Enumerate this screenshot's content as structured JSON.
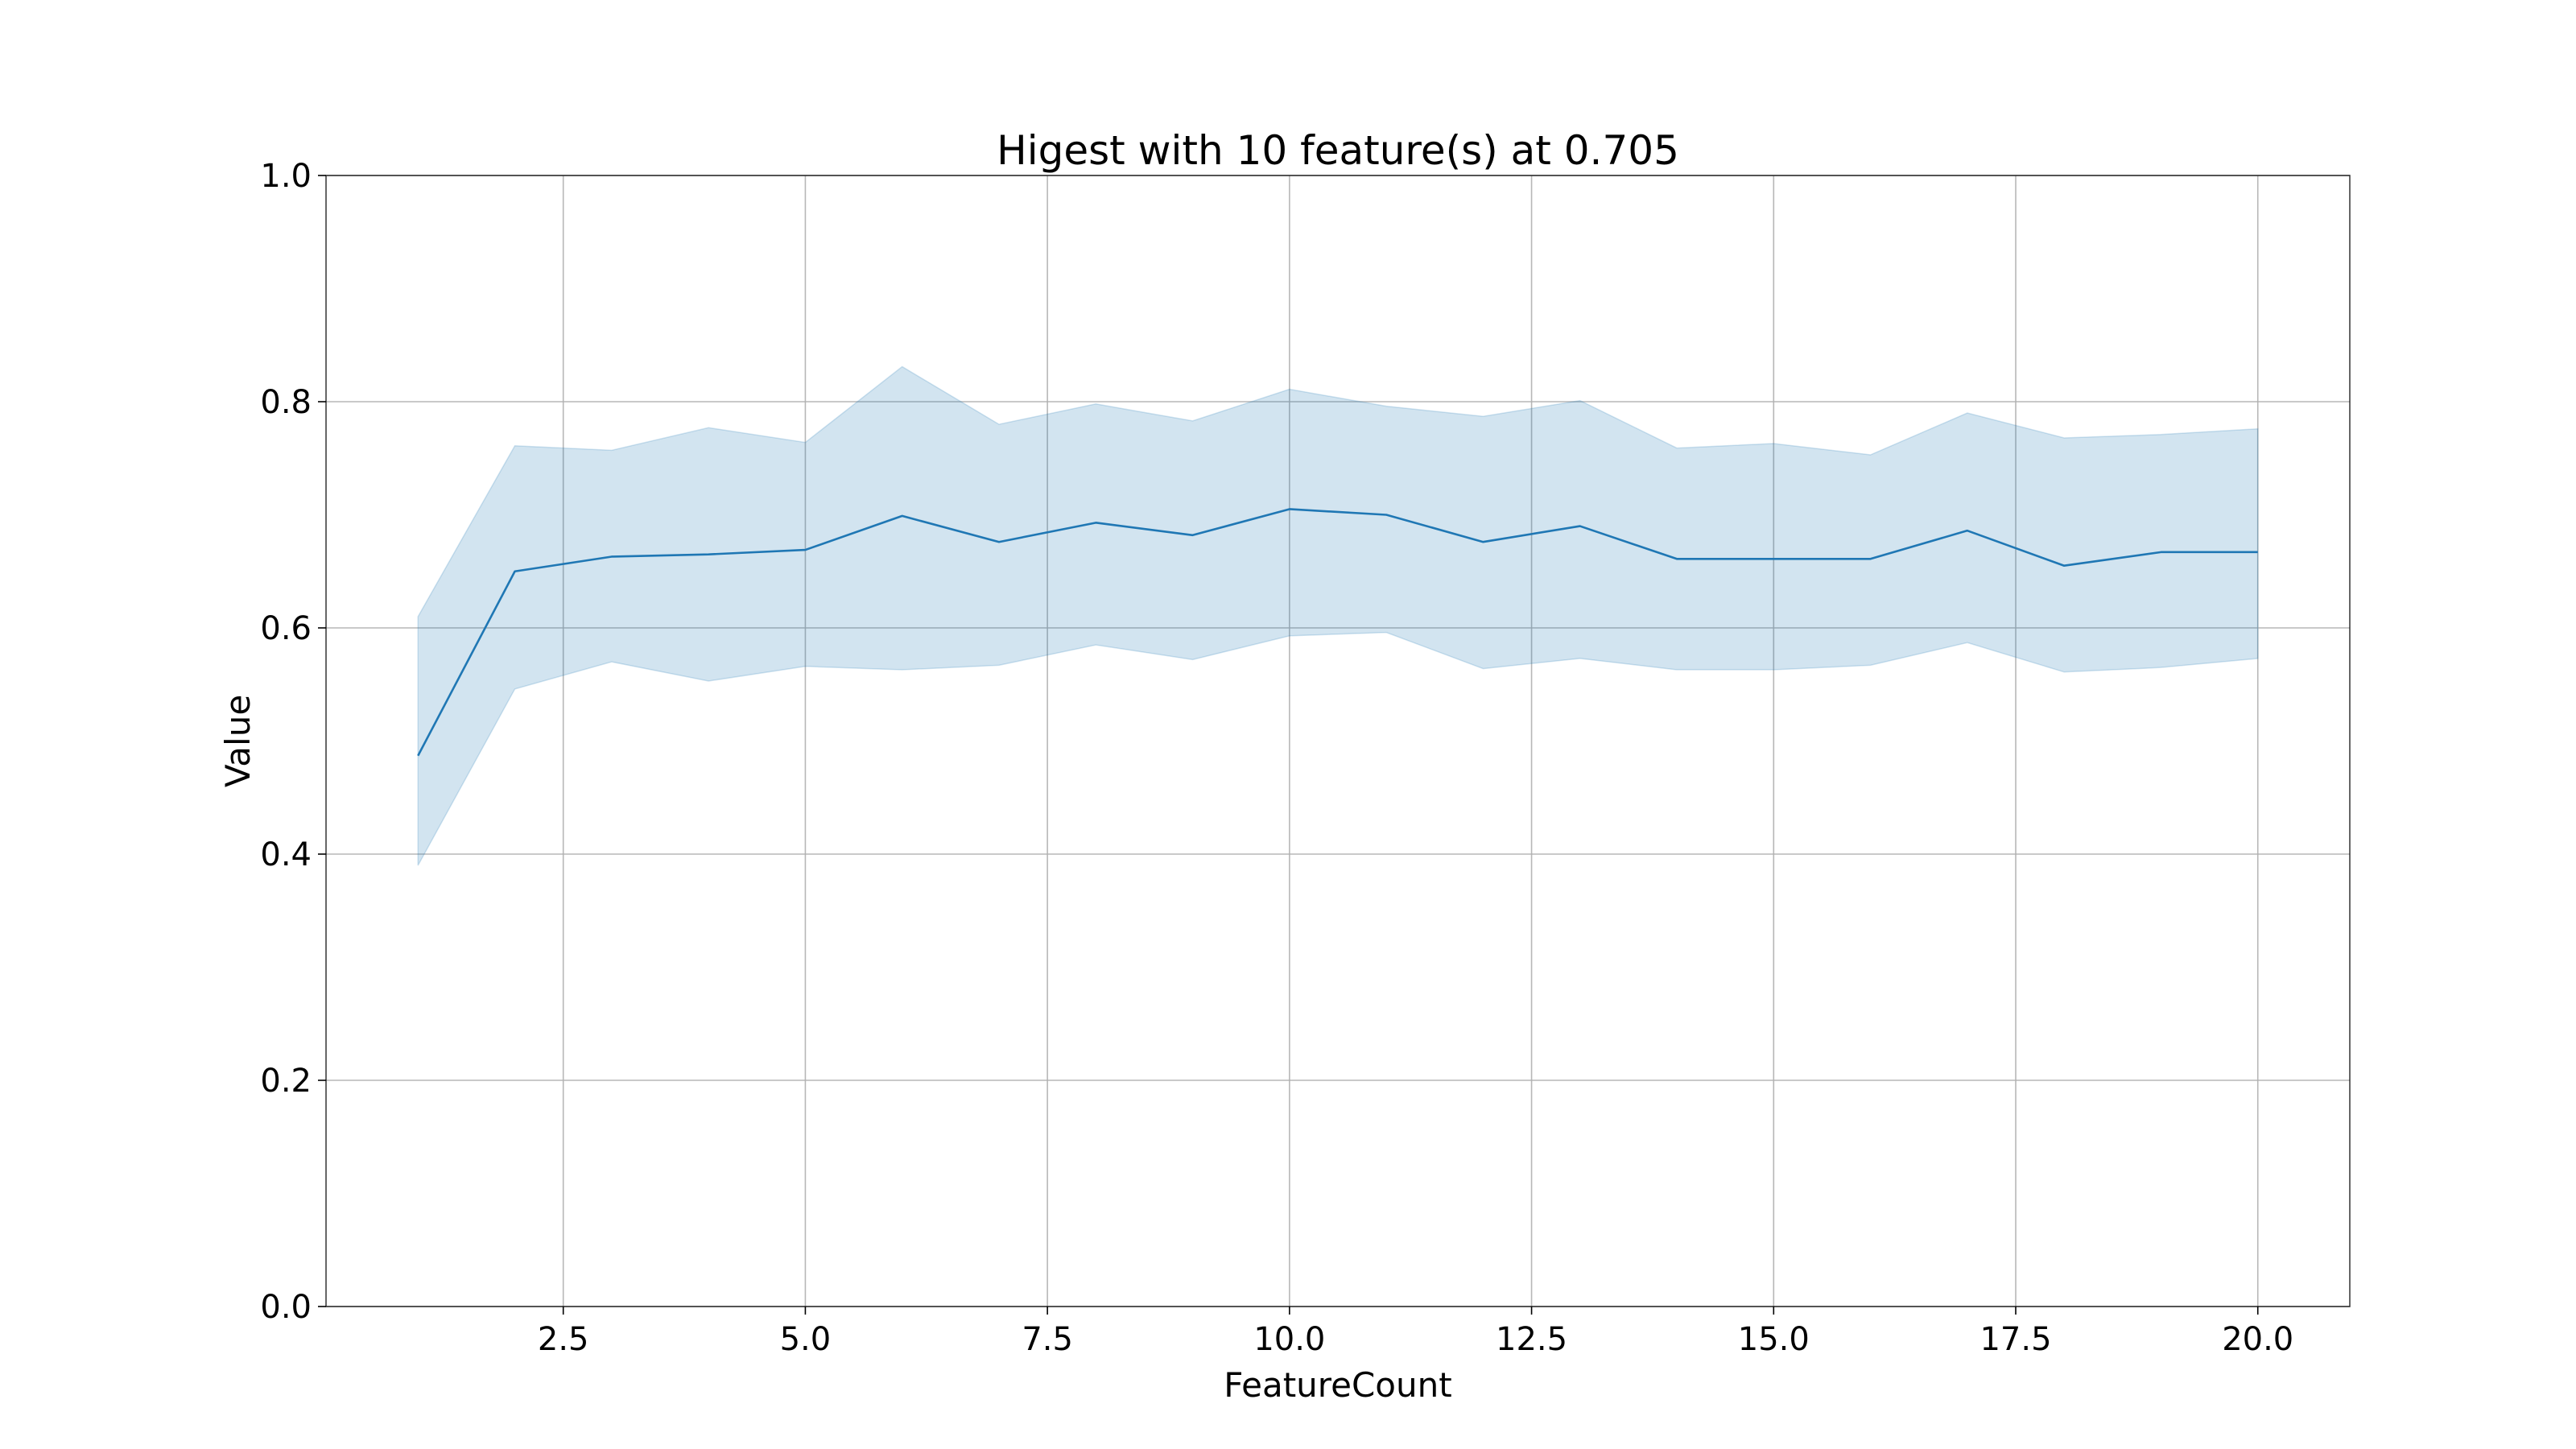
{
  "chart_data": {
    "type": "line",
    "title": "Higest with 10 feature(s) at 0.705",
    "xlabel": "FeatureCount",
    "ylabel": "Value",
    "xlim": [
      0.05,
      20.95
    ],
    "ylim": [
      0.0,
      1.0
    ],
    "grid": true,
    "x_ticks": [
      2.5,
      5.0,
      7.5,
      10.0,
      12.5,
      15.0,
      17.5,
      20.0
    ],
    "x_tick_labels": [
      "2.5",
      "5.0",
      "7.5",
      "10.0",
      "12.5",
      "15.0",
      "17.5",
      "20.0"
    ],
    "y_ticks": [
      0.0,
      0.2,
      0.4,
      0.6,
      0.8,
      1.0
    ],
    "y_tick_labels": [
      "0.0",
      "0.2",
      "0.4",
      "0.6",
      "0.8",
      "1.0"
    ],
    "series": [
      {
        "name": "Value",
        "color": "#1f77b4",
        "band_color": "#1f77b4",
        "x": [
          1,
          2,
          3,
          4,
          5,
          6,
          7,
          8,
          9,
          10,
          11,
          12,
          13,
          14,
          15,
          16,
          17,
          18,
          19,
          20
        ],
        "values": [
          0.487,
          0.65,
          0.663,
          0.665,
          0.669,
          0.699,
          0.676,
          0.693,
          0.682,
          0.705,
          0.7,
          0.676,
          0.69,
          0.661,
          0.661,
          0.661,
          0.686,
          0.655,
          0.667,
          0.667
        ],
        "upper": [
          0.61,
          0.761,
          0.757,
          0.777,
          0.764,
          0.831,
          0.78,
          0.798,
          0.783,
          0.811,
          0.796,
          0.787,
          0.801,
          0.759,
          0.763,
          0.753,
          0.79,
          0.768,
          0.771,
          0.776
        ],
        "lower": [
          0.39,
          0.546,
          0.57,
          0.553,
          0.566,
          0.563,
          0.567,
          0.585,
          0.572,
          0.593,
          0.596,
          0.564,
          0.573,
          0.563,
          0.563,
          0.567,
          0.587,
          0.561,
          0.565,
          0.573
        ]
      }
    ]
  }
}
